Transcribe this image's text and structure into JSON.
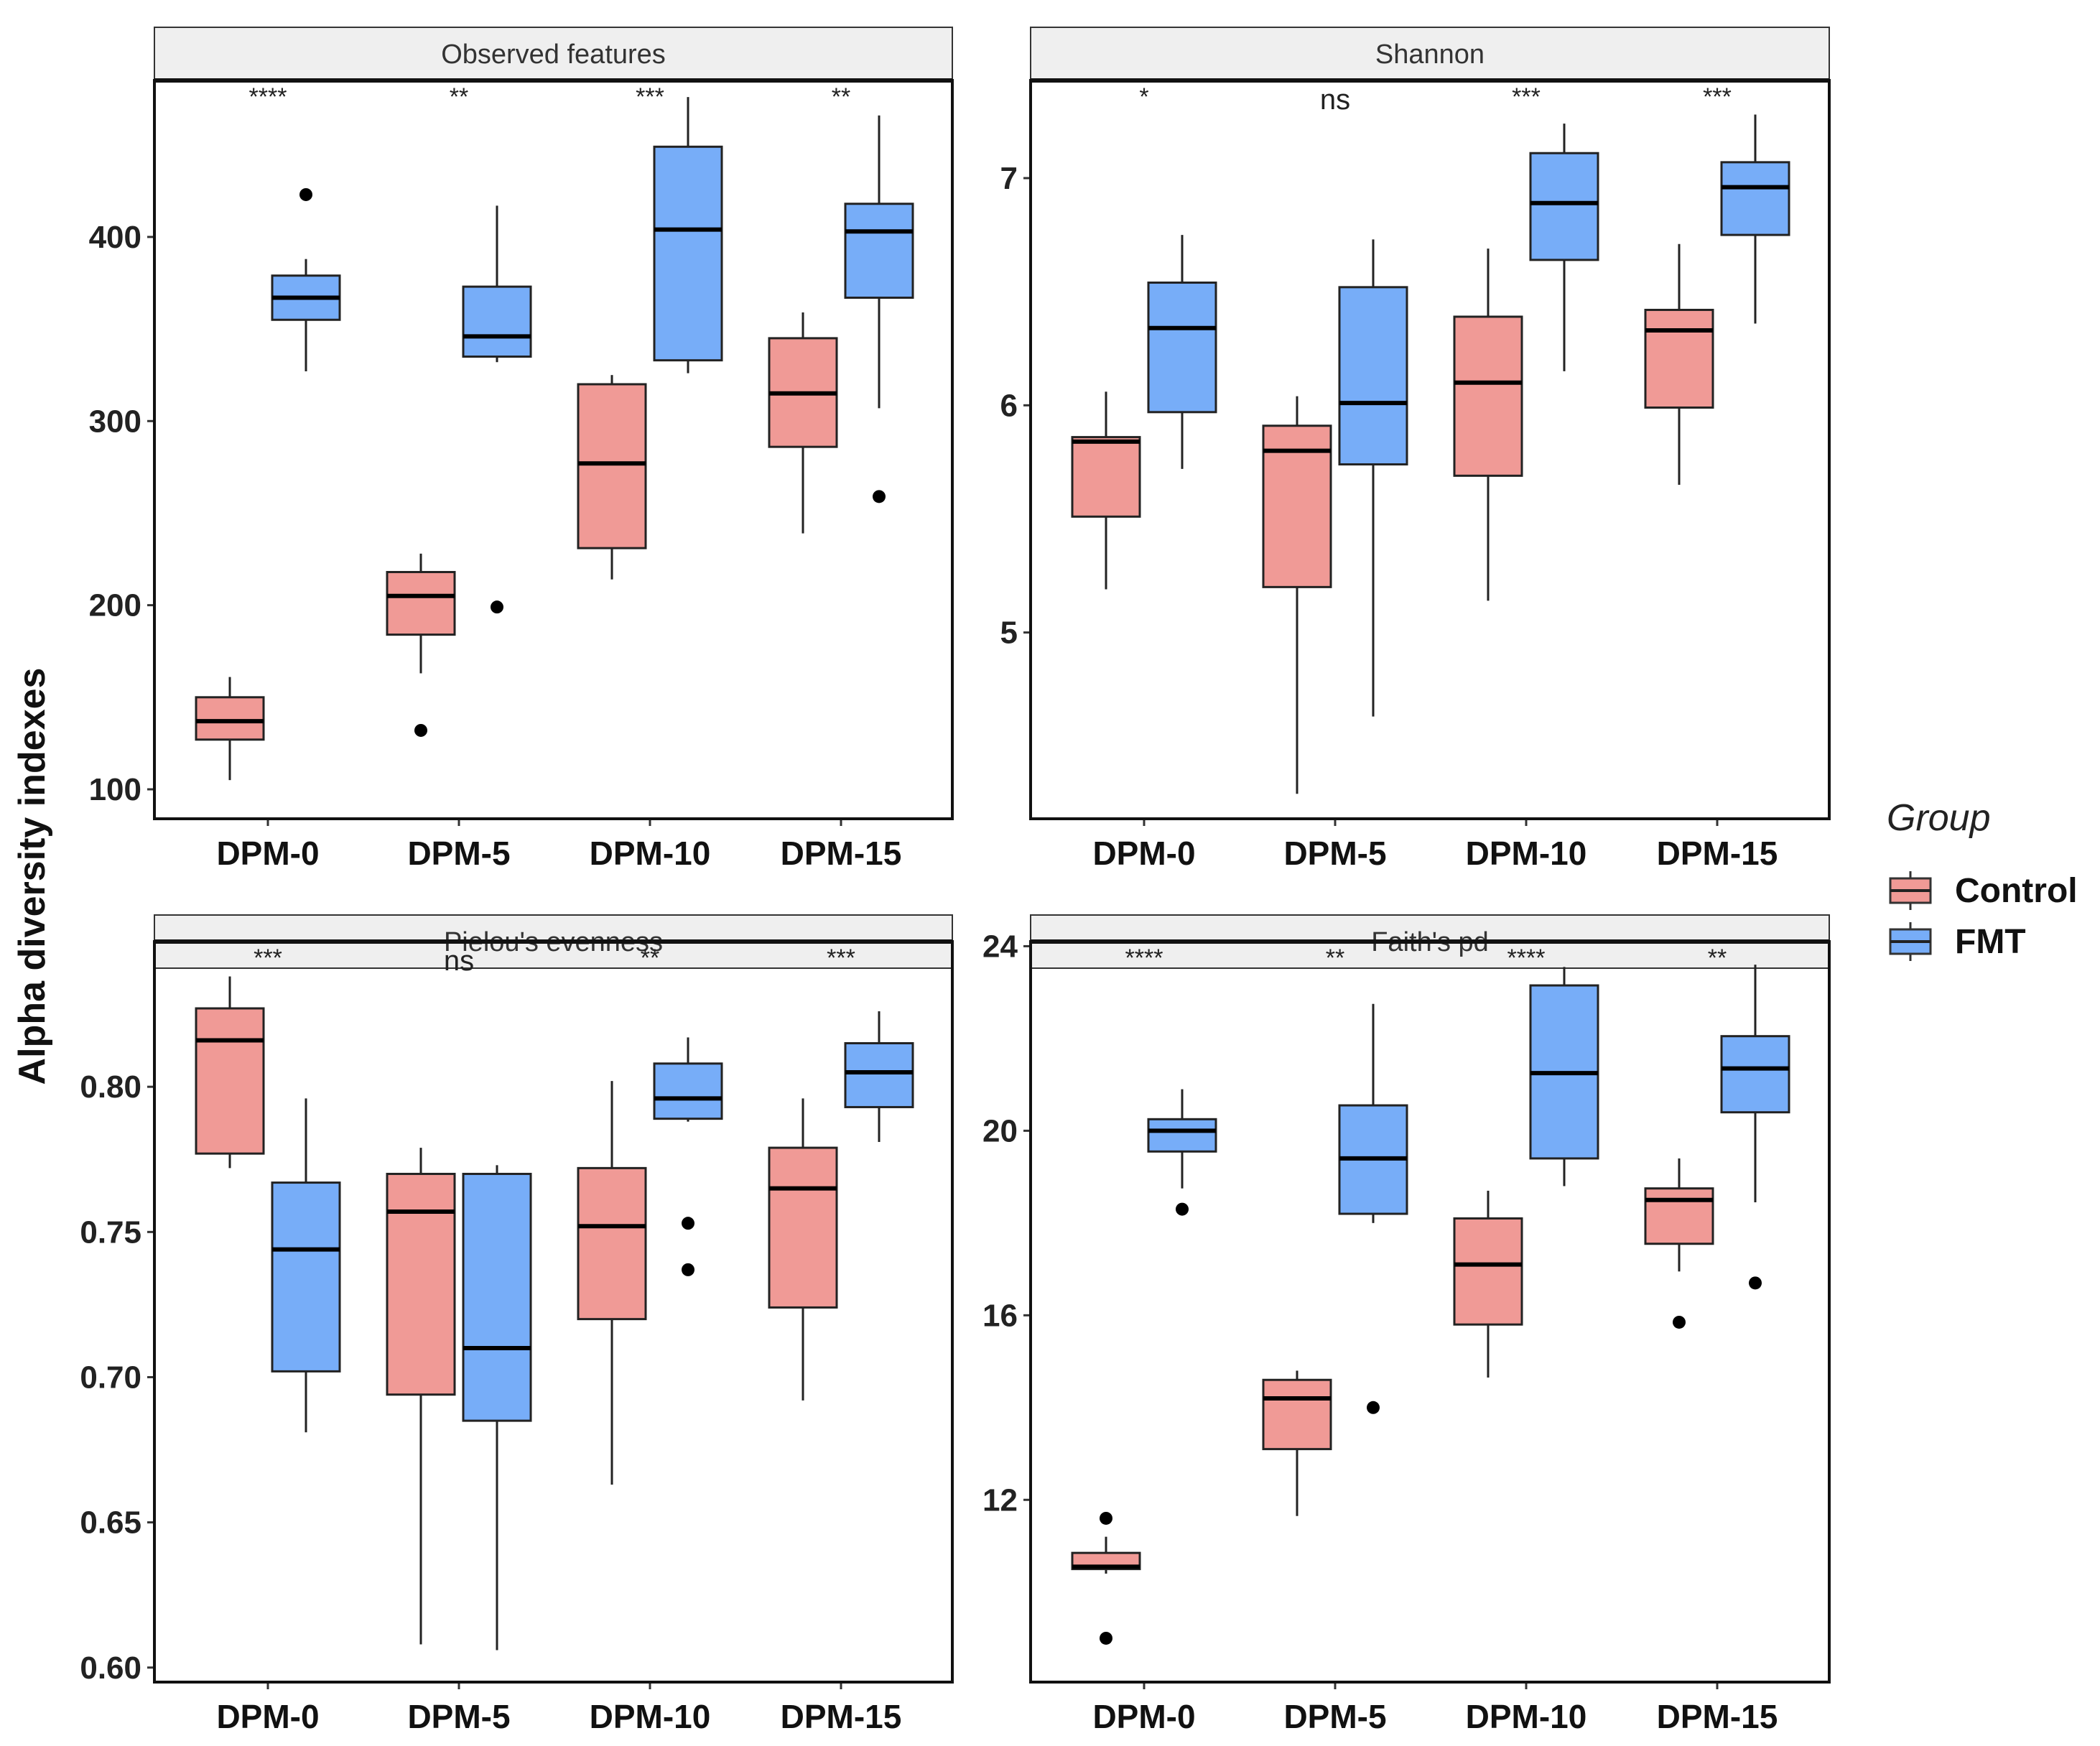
{
  "ylabel": "Alpha diversity indexes",
  "legend": {
    "title": "Group",
    "items": [
      {
        "label": "Control",
        "color": "#f09a96"
      },
      {
        "label": "FMT",
        "color": "#77adf8"
      }
    ]
  },
  "colors": {
    "control": "#f09a96",
    "fmt": "#77adf8",
    "strip_bg": "#efefef",
    "median": "#000000"
  },
  "chart_data": [
    {
      "type": "box",
      "title": "Observed features",
      "categories": [
        "DPM-0",
        "DPM-5",
        "DPM-10",
        "DPM-15"
      ],
      "ylim": [
        84,
        485
      ],
      "yticks": [
        100,
        200,
        300,
        400
      ],
      "ytick_labels": [
        "100",
        "200",
        "300",
        "400"
      ],
      "significance": [
        "****",
        "**",
        "***",
        "**"
      ],
      "series": [
        {
          "name": "Control",
          "boxes": [
            {
              "min": 105,
              "q1": 127,
              "median": 137,
              "q3": 150,
              "max": 161,
              "outliers": []
            },
            {
              "min": 163,
              "q1": 184,
              "median": 205,
              "q3": 218,
              "max": 228,
              "outliers": [
                132
              ]
            },
            {
              "min": 214,
              "q1": 231,
              "median": 277,
              "q3": 320,
              "max": 325,
              "outliers": []
            },
            {
              "min": 239,
              "q1": 286,
              "median": 315,
              "q3": 345,
              "max": 359,
              "outliers": []
            }
          ]
        },
        {
          "name": "FMT",
          "boxes": [
            {
              "min": 327,
              "q1": 355,
              "median": 367,
              "q3": 379,
              "max": 388,
              "outliers": [
                423
              ]
            },
            {
              "min": 332,
              "q1": 335,
              "median": 346,
              "q3": 373,
              "max": 417,
              "outliers": [
                199
              ]
            },
            {
              "min": 326,
              "q1": 333,
              "median": 404,
              "q3": 449,
              "max": 476,
              "outliers": []
            },
            {
              "min": 307,
              "q1": 367,
              "median": 403,
              "q3": 418,
              "max": 466,
              "outliers": [
                259
              ]
            }
          ]
        }
      ]
    },
    {
      "type": "box",
      "title": "Shannon",
      "categories": [
        "DPM-0",
        "DPM-5",
        "DPM-10",
        "DPM-15"
      ],
      "ylim": [
        4.18,
        7.43
      ],
      "yticks": [
        5,
        6,
        7
      ],
      "ytick_labels": [
        "5",
        "6",
        "7"
      ],
      "significance": [
        "*",
        "ns",
        "***",
        "***"
      ],
      "series": [
        {
          "name": "Control",
          "boxes": [
            {
              "min": 5.19,
              "q1": 5.51,
              "median": 5.84,
              "q3": 5.86,
              "max": 6.06,
              "outliers": []
            },
            {
              "min": 4.29,
              "q1": 5.2,
              "median": 5.8,
              "q3": 5.91,
              "max": 6.04,
              "outliers": []
            },
            {
              "min": 5.14,
              "q1": 5.69,
              "median": 6.1,
              "q3": 6.39,
              "max": 6.69,
              "outliers": []
            },
            {
              "min": 5.65,
              "q1": 5.99,
              "median": 6.33,
              "q3": 6.42,
              "max": 6.71,
              "outliers": []
            }
          ]
        },
        {
          "name": "FMT",
          "boxes": [
            {
              "min": 5.72,
              "q1": 5.97,
              "median": 6.34,
              "q3": 6.54,
              "max": 6.75,
              "outliers": []
            },
            {
              "min": 4.63,
              "q1": 5.74,
              "median": 6.01,
              "q3": 6.52,
              "max": 6.73,
              "outliers": []
            },
            {
              "min": 6.15,
              "q1": 6.64,
              "median": 6.89,
              "q3": 7.11,
              "max": 7.24,
              "outliers": []
            },
            {
              "min": 6.36,
              "q1": 6.75,
              "median": 6.96,
              "q3": 7.07,
              "max": 7.28,
              "outliers": []
            }
          ]
        }
      ]
    },
    {
      "type": "box",
      "title": "Pielou's evenness",
      "categories": [
        "DPM-0",
        "DPM-5",
        "DPM-10",
        "DPM-15"
      ],
      "ylim": [
        0.595,
        0.85
      ],
      "yticks": [
        0.6,
        0.65,
        0.7,
        0.75,
        0.8
      ],
      "ytick_labels": [
        "0.60",
        "0.65",
        "0.70",
        "0.75",
        "0.80"
      ],
      "significance": [
        "***",
        "ns",
        "**",
        "***"
      ],
      "series": [
        {
          "name": "Control",
          "boxes": [
            {
              "min": 0.772,
              "q1": 0.777,
              "median": 0.816,
              "q3": 0.827,
              "max": 0.838,
              "outliers": []
            },
            {
              "min": 0.608,
              "q1": 0.694,
              "median": 0.757,
              "q3": 0.77,
              "max": 0.779,
              "outliers": []
            },
            {
              "min": 0.663,
              "q1": 0.72,
              "median": 0.752,
              "q3": 0.772,
              "max": 0.802,
              "outliers": []
            },
            {
              "min": 0.692,
              "q1": 0.724,
              "median": 0.765,
              "q3": 0.779,
              "max": 0.796,
              "outliers": []
            }
          ]
        },
        {
          "name": "FMT",
          "boxes": [
            {
              "min": 0.681,
              "q1": 0.702,
              "median": 0.744,
              "q3": 0.767,
              "max": 0.796,
              "outliers": []
            },
            {
              "min": 0.606,
              "q1": 0.685,
              "median": 0.71,
              "q3": 0.77,
              "max": 0.773,
              "outliers": []
            },
            {
              "min": 0.788,
              "q1": 0.789,
              "median": 0.796,
              "q3": 0.808,
              "max": 0.817,
              "outliers": [
                0.753,
                0.737
              ]
            },
            {
              "min": 0.781,
              "q1": 0.793,
              "median": 0.805,
              "q3": 0.815,
              "max": 0.826,
              "outliers": []
            }
          ]
        }
      ]
    },
    {
      "type": "box",
      "title": "Faith's pd",
      "categories": [
        "DPM-0",
        "DPM-5",
        "DPM-10",
        "DPM-15"
      ],
      "ylim": [
        8.05,
        24.1
      ],
      "yticks": [
        12,
        16,
        20,
        24
      ],
      "ytick_labels": [
        "12",
        "16",
        "20",
        "24"
      ],
      "significance": [
        "****",
        "**",
        "****",
        "**"
      ],
      "series": [
        {
          "name": "Control",
          "boxes": [
            {
              "min": 10.4,
              "q1": 10.5,
              "median": 10.55,
              "q3": 10.85,
              "max": 11.2,
              "outliers": [
                11.6,
                9.0
              ]
            },
            {
              "min": 11.65,
              "q1": 13.1,
              "median": 14.2,
              "q3": 14.6,
              "max": 14.8,
              "outliers": []
            },
            {
              "min": 14.65,
              "q1": 15.8,
              "median": 17.1,
              "q3": 18.1,
              "max": 18.7,
              "outliers": []
            },
            {
              "min": 16.95,
              "q1": 17.55,
              "median": 18.5,
              "q3": 18.75,
              "max": 19.4,
              "outliers": [
                15.85
              ]
            }
          ]
        },
        {
          "name": "FMT",
          "boxes": [
            {
              "min": 18.75,
              "q1": 19.55,
              "median": 20.0,
              "q3": 20.25,
              "max": 20.9,
              "outliers": [
                18.3
              ]
            },
            {
              "min": 18.0,
              "q1": 18.2,
              "median": 19.4,
              "q3": 20.55,
              "max": 22.75,
              "outliers": [
                14.0
              ]
            },
            {
              "min": 18.8,
              "q1": 19.4,
              "median": 21.25,
              "q3": 23.15,
              "max": 23.55,
              "outliers": []
            },
            {
              "min": 18.45,
              "q1": 20.4,
              "median": 21.35,
              "q3": 22.05,
              "max": 23.6,
              "outliers": [
                16.7
              ]
            }
          ]
        }
      ]
    }
  ]
}
